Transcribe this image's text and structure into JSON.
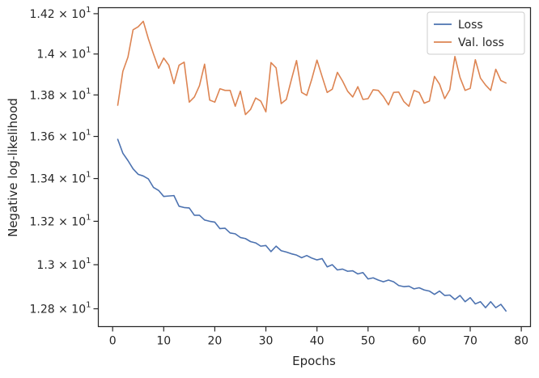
{
  "chart_data": {
    "type": "line",
    "xlabel": "Epochs",
    "ylabel": "Negative log-likelihood",
    "yscale": "log",
    "xlim": [
      -2.8,
      81.8
    ],
    "ylim": [
      12.72,
      14.23
    ],
    "grid": false,
    "legend_position": "top-right",
    "x_ticks": [
      0,
      10,
      20,
      30,
      40,
      50,
      60,
      70,
      80
    ],
    "x_tick_labels": [
      "0",
      "10",
      "20",
      "30",
      "40",
      "50",
      "60",
      "70",
      "80"
    ],
    "y_ticks": [
      {
        "value": 12.8,
        "mantissa": "1.28",
        "operator": "× 10",
        "exponent": "1"
      },
      {
        "value": 13.0,
        "mantissa": "1.3",
        "operator": "× 10",
        "exponent": "1"
      },
      {
        "value": 13.2,
        "mantissa": "1.32",
        "operator": "× 10",
        "exponent": "1"
      },
      {
        "value": 13.4,
        "mantissa": "1.34",
        "operator": "× 10",
        "exponent": "1"
      },
      {
        "value": 13.6,
        "mantissa": "1.36",
        "operator": "× 10",
        "exponent": "1"
      },
      {
        "value": 13.8,
        "mantissa": "1.38",
        "operator": "× 10",
        "exponent": "1"
      },
      {
        "value": 14.0,
        "mantissa": "1.4",
        "operator": "× 10",
        "exponent": "1"
      },
      {
        "value": 14.2,
        "mantissa": "1.42",
        "operator": "× 10",
        "exponent": "1"
      }
    ],
    "series": [
      {
        "name": "Loss",
        "color": "#4c72b0",
        "x": [
          1,
          2,
          3,
          4,
          5,
          6,
          7,
          8,
          9,
          10,
          11,
          12,
          13,
          14,
          15,
          16,
          17,
          18,
          19,
          20,
          21,
          22,
          23,
          24,
          25,
          26,
          27,
          28,
          29,
          30,
          31,
          32,
          33,
          34,
          35,
          36,
          37,
          38,
          39,
          40,
          41,
          42,
          43,
          44,
          45,
          46,
          47,
          48,
          49,
          50,
          51,
          52,
          53,
          54,
          55,
          56,
          57,
          58,
          59,
          60,
          61,
          62,
          63,
          64,
          65,
          66,
          67,
          68,
          69,
          70,
          71,
          72,
          73,
          74,
          75,
          76,
          77
        ],
        "y": [
          13.586,
          13.52,
          13.485,
          13.446,
          13.42,
          13.412,
          13.398,
          13.358,
          13.344,
          13.316,
          13.318,
          13.32,
          13.27,
          13.264,
          13.262,
          13.228,
          13.228,
          13.206,
          13.2,
          13.196,
          13.166,
          13.168,
          13.146,
          13.142,
          13.125,
          13.12,
          13.106,
          13.1,
          13.085,
          13.088,
          13.06,
          13.085,
          13.064,
          13.058,
          13.05,
          13.044,
          13.032,
          13.042,
          13.03,
          13.022,
          13.028,
          12.99,
          13.0,
          12.976,
          12.98,
          12.97,
          12.972,
          12.958,
          12.964,
          12.935,
          12.94,
          12.93,
          12.922,
          12.93,
          12.922,
          12.905,
          12.9,
          12.902,
          12.89,
          12.895,
          12.885,
          12.88,
          12.865,
          12.88,
          12.86,
          12.862,
          12.842,
          12.86,
          12.832,
          12.85,
          12.822,
          12.832,
          12.805,
          12.832,
          12.805,
          12.82,
          12.79
        ]
      },
      {
        "name": "Val. loss",
        "color": "#dd8452",
        "x": [
          1,
          2,
          3,
          4,
          5,
          6,
          7,
          8,
          9,
          10,
          11,
          12,
          13,
          14,
          15,
          16,
          17,
          18,
          19,
          20,
          21,
          22,
          23,
          24,
          25,
          26,
          27,
          28,
          29,
          30,
          31,
          32,
          33,
          34,
          35,
          36,
          37,
          38,
          39,
          40,
          41,
          42,
          43,
          44,
          45,
          46,
          47,
          48,
          49,
          50,
          51,
          52,
          53,
          54,
          55,
          56,
          57,
          58,
          59,
          60,
          61,
          62,
          63,
          64,
          65,
          66,
          67,
          68,
          69,
          70,
          71,
          72,
          73,
          74,
          75,
          76,
          77
        ],
        "y": [
          13.75,
          13.915,
          13.985,
          14.12,
          14.135,
          14.162,
          14.075,
          14.0,
          13.93,
          13.98,
          13.945,
          13.855,
          13.945,
          13.96,
          13.765,
          13.79,
          13.845,
          13.95,
          13.775,
          13.765,
          13.83,
          13.822,
          13.822,
          13.745,
          13.818,
          13.705,
          13.73,
          13.785,
          13.77,
          13.718,
          13.958,
          13.932,
          13.758,
          13.778,
          13.875,
          13.968,
          13.812,
          13.798,
          13.878,
          13.97,
          13.89,
          13.812,
          13.828,
          13.91,
          13.868,
          13.818,
          13.79,
          13.84,
          13.778,
          13.782,
          13.825,
          13.822,
          13.792,
          13.752,
          13.812,
          13.814,
          13.768,
          13.745,
          13.822,
          13.812,
          13.76,
          13.77,
          13.89,
          13.852,
          13.782,
          13.825,
          13.988,
          13.885,
          13.822,
          13.832,
          13.972,
          13.882,
          13.848,
          13.822,
          13.925,
          13.87,
          13.858
        ]
      }
    ]
  }
}
